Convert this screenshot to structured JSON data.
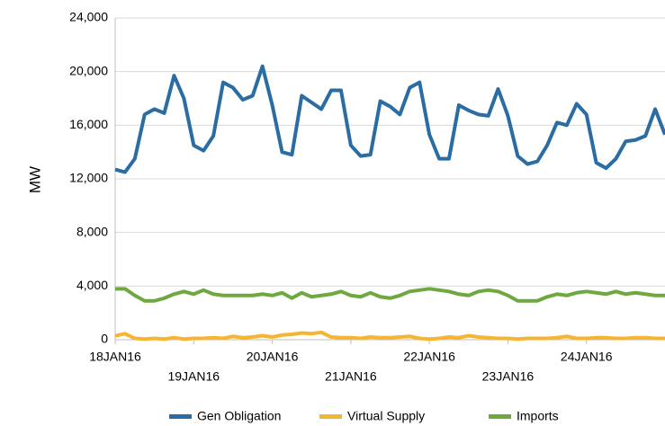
{
  "chart_data": {
    "type": "line",
    "y_label": "MW",
    "categories": [
      "18JAN16",
      null,
      null,
      null,
      null,
      null,
      null,
      null,
      "19JAN16",
      null,
      null,
      null,
      null,
      null,
      null,
      null,
      "20JAN16",
      null,
      null,
      null,
      null,
      null,
      null,
      null,
      "21JAN16",
      null,
      null,
      null,
      null,
      null,
      null,
      null,
      "22JAN16",
      null,
      null,
      null,
      null,
      null,
      null,
      null,
      "23JAN16",
      null,
      null,
      null,
      null,
      null,
      null,
      null,
      "24JAN16",
      null,
      null,
      null,
      null,
      null,
      null,
      null,
      null
    ],
    "series": [
      {
        "name": "Gen Obligation",
        "color": "#2b6ca3",
        "values": [
          12700,
          12500,
          13500,
          16800,
          17200,
          16900,
          19700,
          18000,
          14500,
          14100,
          15200,
          19200,
          18800,
          17900,
          18200,
          20400,
          17500,
          14000,
          13800,
          18200,
          17700,
          17200,
          18600,
          18600,
          14500,
          13700,
          13800,
          17800,
          17400,
          16800,
          18800,
          19200,
          15300,
          13500,
          13500,
          17500,
          17100,
          16800,
          16700,
          18700,
          16700,
          13700,
          13100,
          13300,
          14500,
          16200,
          16000,
          17600,
          16800,
          13200,
          12800,
          13500,
          14800,
          14900,
          15200,
          17200,
          15300
        ]
      },
      {
        "name": "Virtual Supply",
        "color": "#f5b531",
        "values": [
          300,
          450,
          100,
          50,
          100,
          50,
          150,
          50,
          100,
          100,
          150,
          100,
          250,
          150,
          200,
          300,
          200,
          350,
          400,
          500,
          450,
          550,
          200,
          150,
          150,
          100,
          200,
          150,
          150,
          200,
          250,
          100,
          50,
          100,
          200,
          150,
          300,
          200,
          150,
          100,
          100,
          50,
          100,
          100,
          100,
          150,
          250,
          100,
          100,
          150,
          150,
          100,
          100,
          150,
          150,
          100,
          100
        ]
      },
      {
        "name": "Imports",
        "color": "#6ea840",
        "values": [
          3800,
          3800,
          3300,
          2900,
          2900,
          3100,
          3400,
          3600,
          3400,
          3700,
          3400,
          3300,
          3300,
          3300,
          3300,
          3400,
          3300,
          3500,
          3100,
          3500,
          3200,
          3300,
          3400,
          3600,
          3300,
          3200,
          3500,
          3200,
          3100,
          3300,
          3600,
          3700,
          3800,
          3700,
          3600,
          3400,
          3300,
          3600,
          3700,
          3600,
          3300,
          2900,
          2900,
          2900,
          3200,
          3400,
          3300,
          3500,
          3600,
          3500,
          3400,
          3600,
          3400,
          3500,
          3400,
          3300,
          3300
        ]
      }
    ],
    "ylim": [
      0,
      24000
    ],
    "yticks": [
      0,
      {
        "value": 4000,
        "label": "4,000"
      },
      {
        "value": 8000,
        "label": "8,000"
      },
      {
        "value": 12000,
        "label": "12,000"
      },
      {
        "value": 16000,
        "label": "16,000"
      },
      {
        "value": 20000,
        "label": "20,000"
      },
      {
        "value": 24000,
        "label": "24,000"
      }
    ],
    "grid": true,
    "legend": "bottom"
  }
}
